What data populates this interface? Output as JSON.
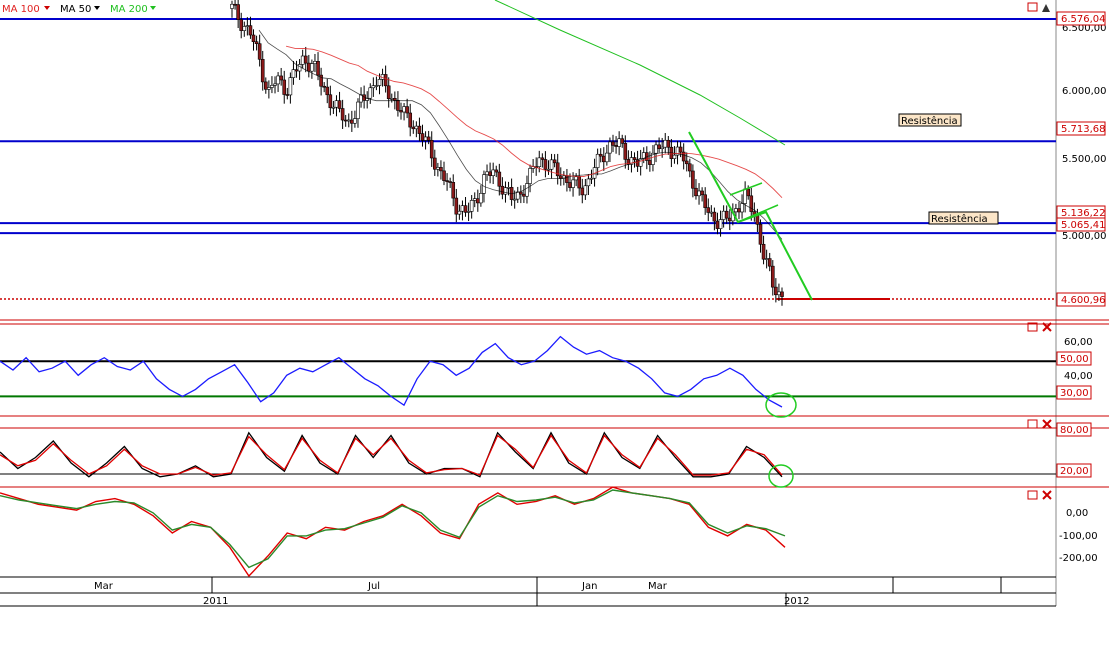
{
  "legend": {
    "ma100": {
      "label": "MA 100",
      "color": "#e02020"
    },
    "ma50": {
      "label": "MA 50",
      "color": "#000000"
    },
    "ma200": {
      "label": "MA 200",
      "color": "#20c020"
    }
  },
  "colors": {
    "hline": "#0000cc",
    "border": "#cc0000",
    "label_bg": "#ffffff",
    "label_text": "#cc0000",
    "up_candle": "#ffffff",
    "down_candle": "#8b1a1a",
    "trend": "#22cc22"
  },
  "annotations": {
    "resist1": "Resistência",
    "resist2": "Resistência"
  },
  "time_axis": {
    "months": [
      "Mar",
      "Jul",
      "Jan",
      "Mar"
    ],
    "years": [
      "2011",
      "2012"
    ]
  },
  "chart_data": [
    {
      "type": "candlestick",
      "title": "",
      "ylim": [
        4600,
        6600
      ],
      "y_ticks": [
        "6.500,00",
        "6.000,00",
        "5.500,00",
        "5.000,00"
      ],
      "y_tick_values": [
        6500,
        6000,
        5500,
        5000
      ],
      "price_levels": [
        "6.576,04",
        "5.713,68",
        "5.136,22",
        "5.065,41",
        "4.600,96"
      ],
      "price_level_values": [
        6576.04,
        5713.68,
        5136.22,
        5065.41,
        4600.96
      ],
      "close_series": [
        6650,
        6560,
        6480,
        6300,
        6050,
        6150,
        6080,
        6200,
        6300,
        6250,
        6100,
        6000,
        5900,
        5850,
        5950,
        6050,
        6150,
        6100,
        6000,
        5900,
        5850,
        5750,
        5650,
        5500,
        5400,
        5250,
        5200,
        5300,
        5450,
        5500,
        5400,
        5300,
        5350,
        5450,
        5600,
        5550,
        5500,
        5450,
        5400,
        5380,
        5500,
        5600,
        5700,
        5680,
        5600,
        5550,
        5600,
        5650,
        5680,
        5650,
        5600,
        5450,
        5300,
        5200,
        5150,
        5160,
        5250,
        5320,
        5200,
        4900,
        4700,
        4620
      ]
    },
    {
      "type": "line",
      "title": "",
      "ylim": [
        20,
        70
      ],
      "y_ticks": [
        "60,00",
        "40,00"
      ],
      "y_tick_values": [
        60,
        40
      ],
      "levels": [
        "50,00",
        "30,00"
      ],
      "level_values": [
        50,
        30
      ],
      "series": [
        {
          "values": [
            50,
            45,
            52,
            44,
            46,
            50,
            42,
            48,
            52,
            47,
            45,
            50,
            40,
            34,
            30,
            34,
            40,
            44,
            48,
            38,
            27,
            32,
            42,
            46,
            44,
            48,
            52,
            46,
            40,
            36,
            30,
            25,
            40,
            50,
            48,
            42,
            46,
            55,
            60,
            52,
            48,
            50,
            56,
            64,
            58,
            54,
            56,
            52,
            50,
            46,
            40,
            32,
            30,
            34,
            40,
            42,
            46,
            42,
            34,
            28,
            24
          ]
        }
      ]
    },
    {
      "type": "line",
      "title": "",
      "ylim": [
        0,
        100
      ],
      "y_ticks": [],
      "levels": [
        "80,00",
        "20,00"
      ],
      "level_values": [
        80,
        20
      ],
      "series": [
        {
          "values": [
            60,
            30,
            50,
            80,
            40,
            15,
            40,
            70,
            30,
            15,
            20,
            35,
            15,
            20,
            95,
            50,
            25,
            90,
            40,
            20,
            90,
            50,
            90,
            40,
            20,
            30,
            30,
            15,
            95,
            60,
            30,
            95,
            40,
            20,
            95,
            50,
            30,
            90,
            50,
            15,
            15,
            20,
            70,
            50,
            15
          ]
        },
        {
          "values": [
            55,
            35,
            45,
            75,
            45,
            20,
            35,
            65,
            35,
            20,
            20,
            32,
            18,
            22,
            88,
            55,
            28,
            85,
            45,
            22,
            85,
            55,
            85,
            45,
            22,
            28,
            30,
            18,
            90,
            65,
            32,
            90,
            45,
            22,
            90,
            55,
            32,
            85,
            55,
            18,
            18,
            22,
            65,
            55,
            18
          ]
        }
      ]
    },
    {
      "type": "line",
      "title": "",
      "ylim": [
        -250,
        50
      ],
      "y_ticks": [
        "0,00",
        "-100,00",
        "-200,00"
      ],
      "y_tick_values": [
        0,
        -100,
        -200
      ],
      "series": [
        {
          "values": [
            40,
            20,
            0,
            -10,
            -20,
            10,
            20,
            0,
            -40,
            -100,
            -60,
            -80,
            -150,
            -250,
            -180,
            -100,
            -120,
            -80,
            -90,
            -60,
            -40,
            0,
            -40,
            -100,
            -120,
            0,
            40,
            0,
            10,
            30,
            0,
            20,
            60,
            40,
            30,
            20,
            0,
            -80,
            -110,
            -70,
            -90,
            -150
          ]
        },
        {
          "values": [
            30,
            15,
            5,
            -5,
            -15,
            0,
            10,
            5,
            -30,
            -90,
            -70,
            -80,
            -140,
            -220,
            -190,
            -110,
            -110,
            -90,
            -85,
            -65,
            -45,
            -5,
            -30,
            -90,
            -115,
            -10,
            30,
            10,
            15,
            25,
            5,
            15,
            50,
            40,
            30,
            20,
            5,
            -70,
            -100,
            -75,
            -85,
            -110
          ]
        }
      ]
    }
  ]
}
